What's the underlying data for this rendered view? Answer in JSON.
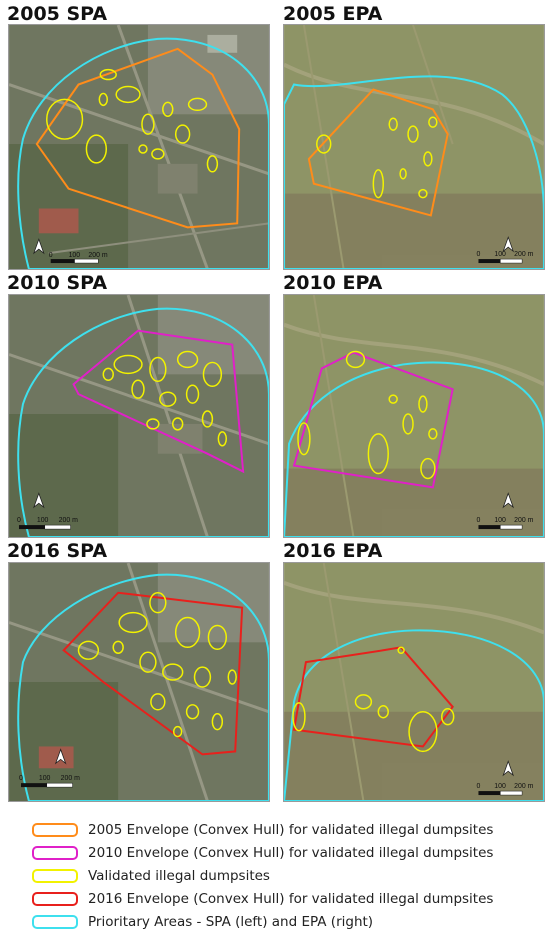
{
  "panels": [
    {
      "title": "2005 SPA",
      "scale_mid": "100",
      "scale_end": "200 m"
    },
    {
      "title": "2005 EPA",
      "scale_mid": "100",
      "scale_end": "200 m"
    },
    {
      "title": "2010 SPA",
      "scale_mid": "100",
      "scale_end": "200 m"
    },
    {
      "title": "2010 EPA",
      "scale_mid": "100",
      "scale_end": "200 m"
    },
    {
      "title": "2016 SPA",
      "scale_mid": "100",
      "scale_end": "200 m"
    },
    {
      "title": "2016 EPA",
      "scale_mid": "100",
      "scale_end": "200 m"
    }
  ],
  "scale_start": "0",
  "legend": [
    {
      "label": "2005 Envelope (Convex Hull) for validated illegal dumpsites",
      "color": "#ff8c1a"
    },
    {
      "label": "2010 Envelope (Convex Hull) for validated illegal dumpsites",
      "color": "#e020c8"
    },
    {
      "label": "Validated illegal dumpsites",
      "color": "#f2f200"
    },
    {
      "label": "2016 Envelope (Convex Hull) for validated illegal dumpsites",
      "color": "#e8201c"
    },
    {
      "label": "Prioritary Areas - SPA (left) and EPA (right)",
      "color": "#3ee0ee"
    }
  ],
  "colors": {
    "priority_area": "#3ee0ee",
    "dumpsite": "#f2f200",
    "envelope_2005": "#ff8c1a",
    "envelope_2010": "#e020c8",
    "envelope_2016": "#e8201c",
    "urban_imagery": "#6f7660",
    "rural_imagery": "#8e9466"
  }
}
